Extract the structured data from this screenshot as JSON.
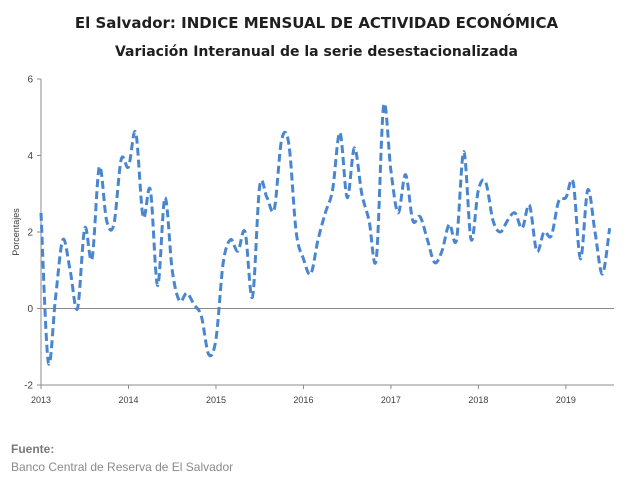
{
  "chart_data": {
    "type": "line",
    "title": "El Salvador: INDICE MENSUAL DE ACTIVIDAD ECONÓMICA",
    "subtitle": "Variación Interanual de la serie desestacionalizada",
    "ylabel": "Porcentajes",
    "xlabel": "",
    "ylim": [
      -2,
      6
    ],
    "yticks": [
      -2,
      0,
      2,
      4,
      6
    ],
    "xticks": [
      "2013",
      "2014",
      "2015",
      "2016",
      "2017",
      "2018",
      "2019"
    ],
    "grid": false,
    "legend": "none",
    "line_color": "#4a86cf",
    "line_style": "dashed",
    "series": [
      {
        "x": [
          2013.0,
          2013.083,
          2013.167,
          2013.25,
          2013.333,
          2013.417,
          2013.5,
          2013.583,
          2013.667,
          2013.75,
          2013.833,
          2013.917,
          2014.0,
          2014.083,
          2014.167,
          2014.25,
          2014.333,
          2014.417,
          2014.5,
          2014.583,
          2014.667,
          2014.75,
          2014.833,
          2014.917,
          2015.0,
          2015.083,
          2015.167,
          2015.25,
          2015.333,
          2015.417,
          2015.5,
          2015.583,
          2015.667,
          2015.75,
          2015.833,
          2015.917,
          2016.0,
          2016.083,
          2016.167,
          2016.25,
          2016.333,
          2016.417,
          2016.5,
          2016.583,
          2016.667,
          2016.75,
          2016.833,
          2016.917,
          2017.0,
          2017.083,
          2017.167,
          2017.25,
          2017.333,
          2017.417,
          2017.5,
          2017.583,
          2017.667,
          2017.75,
          2017.833,
          2017.917,
          2018.0,
          2018.083,
          2018.167,
          2018.25,
          2018.333,
          2018.417,
          2018.5,
          2018.583,
          2018.667,
          2018.75,
          2018.833,
          2018.917,
          2019.0,
          2019.083,
          2019.167,
          2019.25,
          2019.333,
          2019.417,
          2019.5
        ],
        "values": [
          2.5,
          -1.4,
          0.3,
          1.8,
          1.0,
          0.0,
          2.1,
          1.3,
          3.7,
          2.3,
          2.2,
          3.9,
          3.7,
          4.6,
          2.4,
          3.1,
          0.6,
          2.9,
          1.0,
          0.2,
          0.4,
          0.1,
          -0.2,
          -1.2,
          -0.8,
          1.2,
          1.8,
          1.5,
          2.0,
          0.3,
          3.2,
          2.9,
          2.6,
          4.4,
          4.3,
          2.0,
          1.3,
          0.9,
          1.8,
          2.5,
          3.1,
          4.6,
          2.9,
          4.2,
          3.0,
          2.3,
          1.3,
          5.3,
          3.6,
          2.5,
          3.5,
          2.3,
          2.4,
          1.8,
          1.2,
          1.5,
          2.2,
          1.8,
          4.1,
          1.8,
          3.1,
          3.3,
          2.3,
          2.0,
          2.3,
          2.5,
          2.1,
          2.7,
          1.5,
          2.0,
          1.9,
          2.8,
          2.9,
          3.3,
          1.3,
          3.1,
          2.0,
          0.9,
          2.1
        ]
      }
    ]
  },
  "source": {
    "label": "Fuente:",
    "text": "Banco Central de Reserva de El Salvador"
  }
}
